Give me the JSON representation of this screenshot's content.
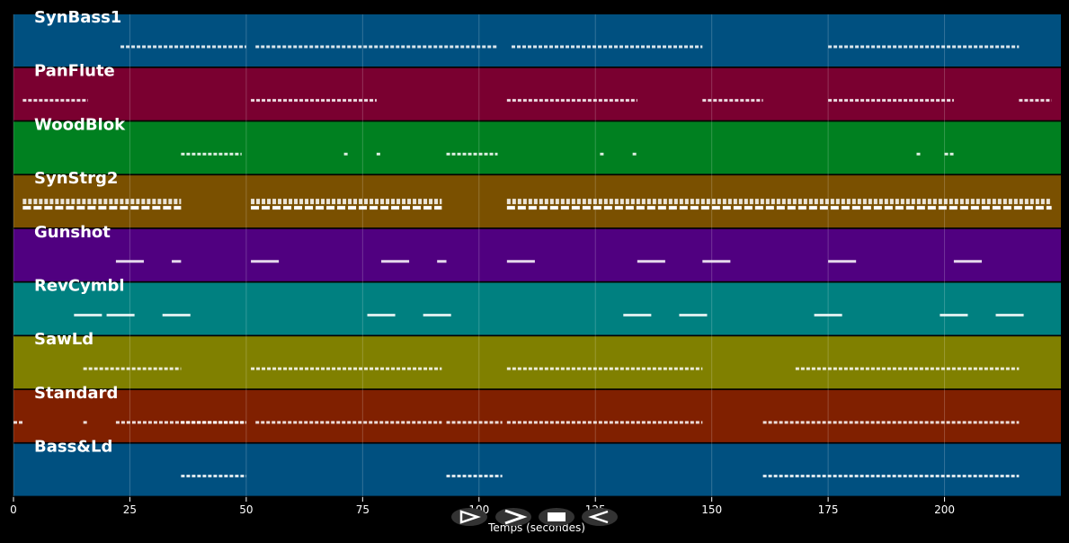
{
  "chart_data": {
    "type": "pianoroll",
    "xlabel": "Temps (secondes)",
    "xlim": [
      0,
      225
    ],
    "xticks": [
      0,
      25,
      50,
      75,
      100,
      125,
      150,
      175,
      200
    ],
    "grid": true,
    "tracks": [
      {
        "name": "SynBass1",
        "color": "#005080",
        "notes": [
          [
            23,
            50
          ],
          [
            52,
            104
          ],
          [
            107,
            148
          ],
          [
            175,
            216
          ]
        ]
      },
      {
        "name": "PanFlute",
        "color": "#7a0030",
        "notes": [
          [
            2,
            16
          ],
          [
            51,
            78
          ],
          [
            106,
            134
          ],
          [
            148,
            161
          ],
          [
            175,
            202
          ],
          [
            216,
            223
          ]
        ]
      },
      {
        "name": "WoodBlok",
        "color": "#008020",
        "notes": [
          [
            36,
            49
          ],
          [
            71,
            72
          ],
          [
            78,
            79
          ],
          [
            93,
            104
          ],
          [
            126,
            127
          ],
          [
            133,
            134
          ],
          [
            194,
            195
          ],
          [
            200,
            202
          ]
        ]
      },
      {
        "name": "SynStrg2",
        "color": "#7a5000",
        "notes": [
          [
            2,
            36
          ],
          [
            51,
            92
          ],
          [
            106,
            223
          ]
        ]
      },
      {
        "name": "Gunshot",
        "color": "#500080",
        "notes": [
          [
            22,
            28
          ],
          [
            34,
            36
          ],
          [
            51,
            57
          ],
          [
            79,
            85
          ],
          [
            91,
            93
          ],
          [
            106,
            112
          ],
          [
            134,
            140
          ],
          [
            148,
            154
          ],
          [
            175,
            181
          ],
          [
            202,
            208
          ]
        ]
      },
      {
        "name": "RevCymbl",
        "color": "#008080",
        "notes": [
          [
            13,
            19
          ],
          [
            20,
            26
          ],
          [
            32,
            38
          ],
          [
            76,
            82
          ],
          [
            88,
            94
          ],
          [
            131,
            137
          ],
          [
            143,
            149
          ],
          [
            172,
            178
          ],
          [
            199,
            205
          ],
          [
            211,
            217
          ]
        ]
      },
      {
        "name": "SawLd",
        "color": "#808000",
        "notes": [
          [
            15,
            36
          ],
          [
            51,
            92
          ],
          [
            106,
            148
          ],
          [
            168,
            216
          ]
        ]
      },
      {
        "name": "Standard",
        "color": "#802000",
        "notes": [
          [
            0,
            2
          ],
          [
            15,
            16
          ],
          [
            22,
            50
          ],
          [
            36,
            50
          ],
          [
            52,
            92
          ],
          [
            93,
            105
          ],
          [
            106,
            148
          ],
          [
            161,
            216
          ]
        ]
      },
      {
        "name": "Bass&Ld",
        "color": "#005080",
        "notes": [
          [
            36,
            50
          ],
          [
            93,
            105
          ],
          [
            161,
            216
          ]
        ]
      }
    ]
  }
}
